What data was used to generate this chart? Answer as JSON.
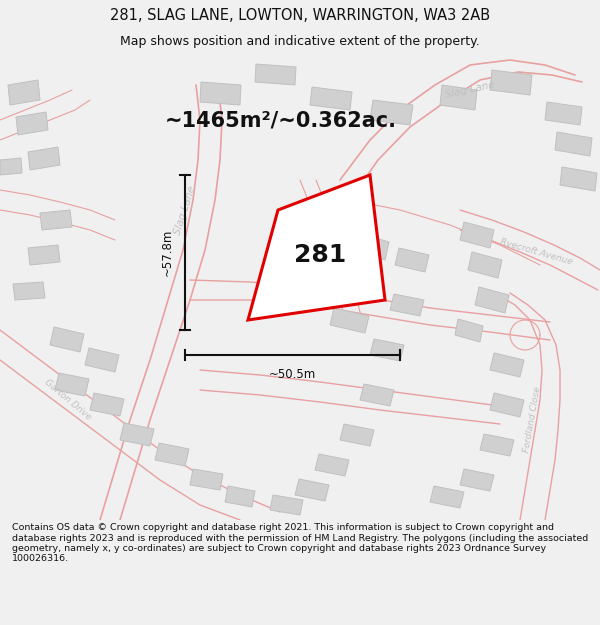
{
  "title": "281, SLAG LANE, LOWTON, WARRINGTON, WA3 2AB",
  "subtitle": "Map shows position and indicative extent of the property.",
  "area_text": "~1465m²/~0.362ac.",
  "property_number": "281",
  "dim_width": "~50.5m",
  "dim_height": "~57.8m",
  "footer": "Contains OS data © Crown copyright and database right 2021. This information is subject to Crown copyright and database rights 2023 and is reproduced with the permission of HM Land Registry. The polygons (including the associated geometry, namely x, y co-ordinates) are subject to Crown copyright and database rights 2023 Ordnance Survey 100026316.",
  "bg_color": "#f0f0f0",
  "map_bg": "#f8f8f8",
  "road_color": "#e8a0a0",
  "building_color": "#d0d0d0",
  "building_edge": "#c0c0c0",
  "plot_edge": "#e00000",
  "plot_fill": "#ffffff",
  "street_label_color": "#c0c0c0",
  "dim_color": "#111111",
  "title_color": "#111111",
  "area_color": "#111111",
  "footer_color": "#111111",
  "title_fontsize": 10.5,
  "subtitle_fontsize": 9,
  "area_fontsize": 15,
  "property_fontsize": 18,
  "dim_fontsize": 8.5,
  "street_fontsize": 7.5,
  "footer_fontsize": 6.8
}
